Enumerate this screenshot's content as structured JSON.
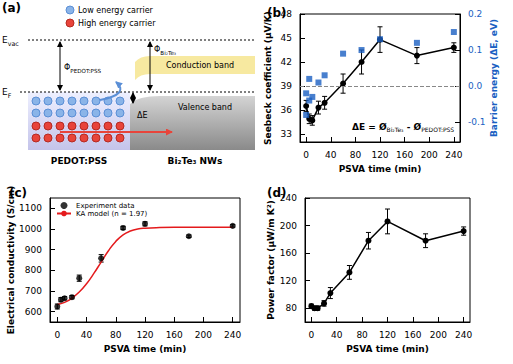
{
  "diagram": {
    "label": "(a)",
    "carriers": [
      "Low energy carrier",
      "High energy carrier"
    ],
    "vacuum_level": [
      "E",
      "vac"
    ],
    "fermi_level": [
      "E",
      "F"
    ],
    "work_function_left": [
      "Φ",
      "PEDOT:PSS"
    ],
    "work_function_right": [
      "Φ",
      "Bi₂Te₃"
    ],
    "barrier": "ΔE",
    "conduction_band": "Conduction band",
    "valence_band": "Valence band",
    "left_material": "PEDOT:PSS",
    "right_material": "Bi₂Te₃ NWs"
  },
  "chart_data": [
    {
      "type": "line",
      "title": "(b)",
      "x_label": "PSVA time (min)",
      "y_label": "Seebeck coefficient (μV/K)",
      "y2_label": "Barrier energy (ΔE, eV)",
      "xlim": [
        -10,
        250
      ],
      "xticks": [
        0,
        40,
        80,
        120,
        160,
        200,
        240
      ],
      "ylim": [
        32,
        48
      ],
      "yticks": [
        33,
        36,
        39,
        42,
        45,
        48
      ],
      "y2lim": [
        -0.155,
        0.2
      ],
      "y2ticks": [
        -0.1,
        {
          "value": 0,
          "label": "0.0"
        },
        0.1,
        0.2
      ],
      "annotation": [
        "ΔE = Ø",
        "Bi₂Te₃",
        " - Ø",
        "PEDOT:PSS"
      ],
      "hline": {
        "value": 0,
        "axis": "y2",
        "line_style": "dashed"
      },
      "series": [
        {
          "type": "line",
          "color": "#000000",
          "marker": "circle",
          "x": [
            0,
            5,
            10,
            20,
            30,
            60,
            90,
            120,
            180,
            240
          ],
          "values": [
            36.5,
            34.9,
            34.7,
            36.3,
            36.9,
            39.3,
            42.0,
            44.8,
            42.8,
            43.8
          ],
          "errors": [
            0.7,
            0.6,
            0.6,
            0.8,
            0.8,
            1.2,
            1.5,
            1.6,
            1.0,
            0.6
          ]
        },
        {
          "type": "scatter",
          "axis": "y2",
          "color": "#1a5fc2",
          "marker": "square",
          "x": [
            0,
            0,
            5,
            5,
            10,
            20,
            30,
            60,
            90,
            120,
            180,
            240
          ],
          "values": [
            -0.02,
            -0.08,
            -0.04,
            0.02,
            -0.03,
            0.01,
            0.03,
            0.09,
            0.1,
            0.13,
            0.12,
            0.15
          ]
        }
      ]
    },
    {
      "type": "scatter",
      "title": "(c)",
      "x_label": "PSVA time (min)",
      "y_label": "Electrical conductivity (S/cm)",
      "xlim": [
        -10,
        250
      ],
      "xticks": [
        0,
        40,
        80,
        120,
        160,
        200,
        240
      ],
      "ylim": [
        550,
        1150
      ],
      "yticks": [
        600,
        700,
        800,
        900,
        1000,
        1100
      ],
      "legend": "upper left",
      "series": [
        {
          "name": "Experiment data",
          "type": "scatter",
          "color": "#000000",
          "marker": "circle",
          "x": [
            0,
            5,
            10,
            20,
            30,
            60,
            90,
            120,
            180,
            240
          ],
          "values": [
            625,
            658,
            665,
            670,
            762,
            858,
            1005,
            1025,
            965,
            1015
          ],
          "errors": [
            12,
            10,
            8,
            8,
            15,
            18,
            8,
            10,
            6,
            6
          ]
        },
        {
          "name": "KA model (n = 1.97)",
          "type": "line",
          "color": "#e41a1c",
          "line_style": "solid",
          "x": [
            0,
            10,
            20,
            30,
            40,
            50,
            60,
            70,
            80,
            90,
            100,
            110,
            120,
            140,
            160,
            200,
            240
          ],
          "values": [
            635,
            645,
            665,
            695,
            735,
            785,
            840,
            895,
            940,
            972,
            990,
            1000,
            1004,
            1007,
            1008,
            1008,
            1008
          ]
        }
      ]
    },
    {
      "type": "line",
      "title": "(d)",
      "x_label": "PSVA time (min)",
      "y_label": "Power factor (μW/m K²)",
      "xlim": [
        -10,
        250
      ],
      "xticks": [
        0,
        40,
        80,
        120,
        160,
        200,
        240
      ],
      "ylim": [
        60,
        240
      ],
      "yticks": [
        80,
        120,
        160,
        200,
        240
      ],
      "series": [
        {
          "type": "line",
          "color": "#000000",
          "marker": "circle",
          "x": [
            0,
            5,
            10,
            20,
            30,
            60,
            90,
            120,
            180,
            240
          ],
          "values": [
            83,
            80,
            80,
            87,
            102,
            132,
            178,
            206,
            178,
            192
          ],
          "errors": [
            3,
            3,
            3,
            4,
            8,
            10,
            12,
            18,
            10,
            6
          ]
        }
      ]
    }
  ]
}
